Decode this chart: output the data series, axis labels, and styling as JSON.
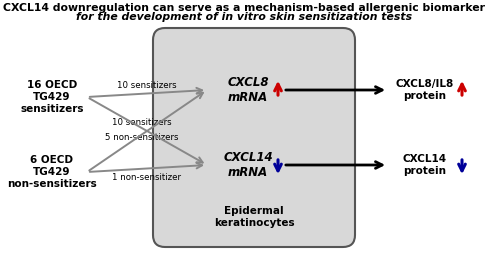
{
  "title_line1": "CXCL14 downregulation can serve as a mechanism-based allergenic biomarker",
  "title_line2": "for the development of in vitro skin sensitization tests",
  "title_fontsize": 7.8,
  "left_top_label": "16 OECD\nTG429\nsensitizers",
  "left_bot_label": "6 OECD\nTG429\nnon-sensitizers",
  "box_label": "Epidermal\nkeratinocytes",
  "cxcl8_label": "CXCL8\nmRNA",
  "cxcl14_label": "CXCL14\nmRNA",
  "right_top_label": "CXCL8/IL8\nprotein",
  "right_bot_label": "CXCL14\nprotein",
  "arrow_top_top": "10 sensitizers",
  "arrow_top_bot": "10 sensitizers",
  "arrow_bot_top": "5 non-sensitizers",
  "arrow_bot_bot": "1 non-sensitizer",
  "bg_color": "#ffffff",
  "box_facecolor": "#d8d8d8",
  "gray_arrow_color": "#888888",
  "black_arrow_color": "#000000",
  "red_color": "#cc0000",
  "blue_color": "#000099",
  "label_fontsize": 7.5,
  "small_fontsize": 6.2,
  "cxcl_fontsize": 8.5
}
